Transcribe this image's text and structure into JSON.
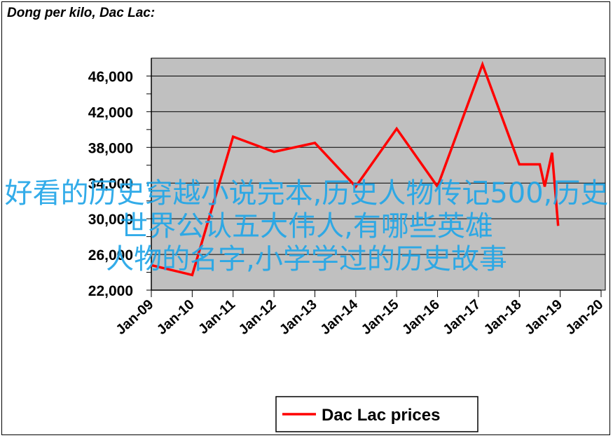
{
  "chart_data": {
    "type": "line",
    "title": "Dong per kilo, Dac Lac:",
    "xlabel": "",
    "ylabel": "",
    "x_ticks": [
      "Jan-09",
      "Jan-10",
      "Jan-11",
      "Jan-12",
      "Jan-13",
      "Jan-14",
      "Jan-15",
      "Jan-16",
      "Jan-17",
      "Jan-18",
      "Jan-19",
      "Jan-20"
    ],
    "y_ticks": [
      "22,000",
      "26,000",
      "30,000",
      "34,000",
      "38,000",
      "42,000",
      "46,000"
    ],
    "ylim": [
      22000,
      48000
    ],
    "xlim": [
      2009.0,
      2020.0
    ],
    "grid": "horizontal",
    "legend": "bottom-center",
    "series": [
      {
        "name": "Dac Lac prices",
        "color": "#ff0000",
        "points": [
          [
            2009.0,
            24800
          ],
          [
            2010.0,
            23700
          ],
          [
            2011.0,
            39200
          ],
          [
            2012.0,
            37500
          ],
          [
            2013.0,
            38500
          ],
          [
            2014.0,
            33600
          ],
          [
            2015.0,
            40100
          ],
          [
            2016.0,
            33600
          ],
          [
            2017.1,
            47300
          ],
          [
            2018.0,
            36100
          ],
          [
            2018.5,
            36100
          ],
          [
            2018.62,
            33600
          ],
          [
            2018.8,
            37400
          ],
          [
            2018.95,
            29200
          ]
        ]
      }
    ]
  },
  "overlay": {
    "lines": [
      "好看的历史穿越小说完本,历史人物传记500,历史世界公认五大伟人,有哪些英雄",
      "人物的名字,小学学过的历史故事"
    ]
  },
  "colors": {
    "plot_bg": "#c0c0c0",
    "line": "#ff0000",
    "overlay_text": "#22a6e8"
  }
}
